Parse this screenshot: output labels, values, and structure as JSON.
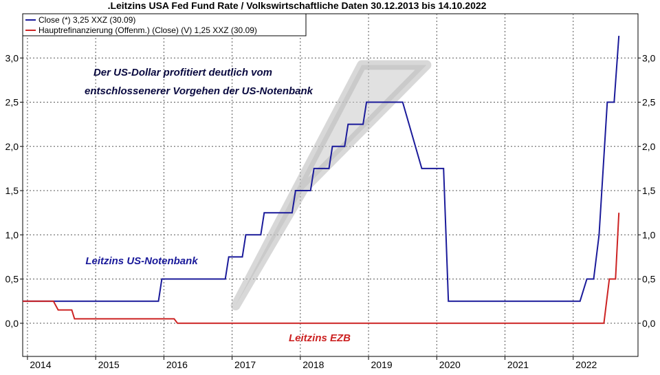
{
  "chart_data": {
    "type": "line",
    "title": ".Leitzins USA Fed Fund Rate / Volkswirtschaftliche Daten 30.12.2013 bis 14.10.2022",
    "xlabel": "",
    "ylabel": "",
    "xlim": [
      2013.93,
      2022.95
    ],
    "ylim": [
      -0.375,
      3.5
    ],
    "grid": true,
    "legend_position": "top-left",
    "x_ticks": [
      2014,
      2015,
      2016,
      2017,
      2018,
      2019,
      2020,
      2021,
      2022
    ],
    "x_tick_labels": [
      "2014",
      "2015",
      "2016",
      "2017",
      "2018",
      "2019",
      "2020",
      "2021",
      "2022"
    ],
    "y_ticks": [
      0.0,
      0.5,
      1.0,
      1.5,
      2.0,
      2.5,
      3.0
    ],
    "y_tick_labels": [
      "0,0",
      "0,5",
      "1,0",
      "1,5",
      "2,0",
      "2,5",
      "3,0"
    ],
    "legend": [
      "Close (*) 3,25 XXZ (30.09)",
      "Hauptrefinanzierung (Offenm.) (Close) (V) 1,25 XXZ (30.09)"
    ],
    "annotations": {
      "headline_line1": "Der US-Dollar profitiert deutlich vom",
      "headline_line2": "entschlossenerer Vorgehen der US-Notenbank",
      "label_us": "Leitzins US-Notenbank",
      "label_ezb": "Leitzins EZB"
    },
    "trend_band": {
      "lower": [
        [
          2017.05,
          0.2
        ],
        [
          2018.05,
          1.52
        ]
      ],
      "upper": [
        [
          2018.9,
          2.92
        ],
        [
          2019.85,
          2.92
        ]
      ]
    },
    "series": [
      {
        "color": "#1a1a9a",
        "points": [
          [
            2013.93,
            0.25
          ],
          [
            2015.92,
            0.25
          ],
          [
            2015.97,
            0.5
          ],
          [
            2016.9,
            0.5
          ],
          [
            2016.95,
            0.75
          ],
          [
            2017.15,
            0.75
          ],
          [
            2017.2,
            1.0
          ],
          [
            2017.42,
            1.0
          ],
          [
            2017.47,
            1.25
          ],
          [
            2017.88,
            1.25
          ],
          [
            2017.93,
            1.5
          ],
          [
            2018.15,
            1.5
          ],
          [
            2018.2,
            1.75
          ],
          [
            2018.42,
            1.75
          ],
          [
            2018.47,
            2.0
          ],
          [
            2018.65,
            2.0
          ],
          [
            2018.7,
            2.25
          ],
          [
            2018.92,
            2.25
          ],
          [
            2018.97,
            2.5
          ],
          [
            2019.5,
            2.5
          ],
          [
            2019.78,
            1.75
          ],
          [
            2020.1,
            1.75
          ],
          [
            2020.17,
            0.25
          ],
          [
            2022.1,
            0.25
          ],
          [
            2022.2,
            0.5
          ],
          [
            2022.3,
            0.5
          ],
          [
            2022.38,
            1.0
          ],
          [
            2022.5,
            2.5
          ],
          [
            2022.6,
            2.5
          ],
          [
            2022.67,
            3.25
          ]
        ]
      },
      {
        "color": "#cc2222",
        "points": [
          [
            2013.93,
            0.25
          ],
          [
            2014.38,
            0.25
          ],
          [
            2014.45,
            0.15
          ],
          [
            2014.65,
            0.15
          ],
          [
            2014.69,
            0.05
          ],
          [
            2016.15,
            0.05
          ],
          [
            2016.2,
            0.0
          ],
          [
            2022.45,
            0.0
          ],
          [
            2022.53,
            0.5
          ],
          [
            2022.62,
            0.5
          ],
          [
            2022.67,
            1.25
          ]
        ]
      }
    ]
  }
}
